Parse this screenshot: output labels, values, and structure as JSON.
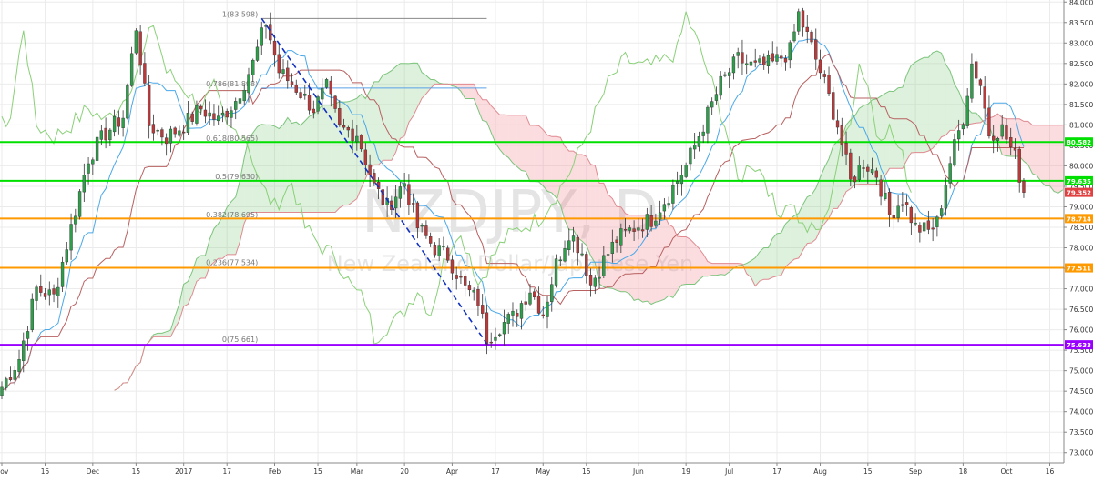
{
  "chart_data": {
    "type": "candlestick",
    "watermark_symbol": "NZDJPY, D",
    "watermark_name": "New Zealand Dollar/Japanese Yen",
    "y_range": [
      72.75,
      84.05
    ],
    "y_ticks": [
      84.0,
      83.5,
      83.0,
      82.5,
      82.0,
      81.5,
      81.0,
      80.5,
      80.0,
      79.5,
      79.0,
      78.5,
      78.0,
      77.5,
      77.0,
      76.5,
      76.0,
      75.5,
      75.0,
      74.5,
      74.0,
      73.5,
      73.0
    ],
    "y_tick_labels": [
      "84.000",
      "83.500",
      "83.000",
      "82.500",
      "82.000",
      "81.500",
      "81.000",
      "80.500",
      "80.000",
      "79.500",
      "79.000",
      "78.500",
      "78.000",
      "77.500",
      "77.000",
      "76.500",
      "76.000",
      "75.500",
      "75.000",
      "74.500",
      "74.000",
      "73.500",
      "73.000"
    ],
    "x_labels": [
      {
        "i": 0,
        "label": "Nov"
      },
      {
        "i": 10,
        "label": "15"
      },
      {
        "i": 21,
        "label": "Dec"
      },
      {
        "i": 31,
        "label": "15"
      },
      {
        "i": 42,
        "label": "2017"
      },
      {
        "i": 52,
        "label": "17"
      },
      {
        "i": 63,
        "label": "Feb"
      },
      {
        "i": 73,
        "label": "15"
      },
      {
        "i": 82,
        "label": "Mar"
      },
      {
        "i": 93,
        "label": "20"
      },
      {
        "i": 104,
        "label": "Apr"
      },
      {
        "i": 114,
        "label": "17"
      },
      {
        "i": 125,
        "label": "May"
      },
      {
        "i": 135,
        "label": "15"
      },
      {
        "i": 147,
        "label": "Jun"
      },
      {
        "i": 158,
        "label": "19"
      },
      {
        "i": 168,
        "label": "Jul"
      },
      {
        "i": 179,
        "label": "17"
      },
      {
        "i": 189,
        "label": "Aug"
      },
      {
        "i": 200,
        "label": "15"
      },
      {
        "i": 211,
        "label": "Sep"
      },
      {
        "i": 222,
        "label": "18"
      },
      {
        "i": 232,
        "label": "Oct"
      },
      {
        "i": 242,
        "label": "16"
      }
    ],
    "horizontal_levels": [
      {
        "price": 80.582,
        "label": "80.582",
        "color": "#00e000"
      },
      {
        "price": 79.635,
        "label": "79.635",
        "color": "#00e000"
      },
      {
        "price": 78.714,
        "label": "78.714",
        "color": "#ff9900"
      },
      {
        "price": 77.511,
        "label": "77.511",
        "color": "#ff9900"
      },
      {
        "price": 75.633,
        "label": "75.633",
        "color": "#9900ff"
      }
    ],
    "last_price": {
      "price": 79.352,
      "label": "79.352",
      "color": "#e04040"
    },
    "fibonacci": {
      "start_index": 60,
      "end_index": 112,
      "high": 83.598,
      "low": 75.661,
      "levels": [
        {
          "price": 83.598,
          "label": "1(83.598)",
          "color": "#888888"
        },
        {
          "price": 81.898,
          "label": "0.786(81.898)",
          "color": "#5aa0e6"
        },
        {
          "price": 80.565,
          "label": "0.618(80.565)",
          "color": "#00c000"
        },
        {
          "price": 79.63,
          "label": "0.5(79.630)",
          "color": "#00c000"
        },
        {
          "price": 78.695,
          "label": "0.382(78.695)",
          "color": "#e6a800"
        },
        {
          "price": 77.534,
          "label": "0.236(77.534)",
          "color": "#e6a800"
        },
        {
          "price": 75.661,
          "label": "0(75.661)",
          "color": "#8800cc"
        }
      ]
    },
    "trendline": {
      "from_index": 60,
      "from_price": 83.6,
      "to_index": 112,
      "to_price": 75.66,
      "color": "#1030c0"
    },
    "anchors": [
      {
        "i": 0,
        "c": 74.6
      },
      {
        "i": 4,
        "c": 75.3
      },
      {
        "i": 8,
        "c": 77.0
      },
      {
        "i": 12,
        "c": 76.8
      },
      {
        "i": 16,
        "c": 78.5
      },
      {
        "i": 20,
        "c": 80.2
      },
      {
        "i": 24,
        "c": 80.8
      },
      {
        "i": 28,
        "c": 81.2
      },
      {
        "i": 31,
        "c": 83.4
      },
      {
        "i": 34,
        "c": 81.0
      },
      {
        "i": 38,
        "c": 80.7
      },
      {
        "i": 42,
        "c": 81.0
      },
      {
        "i": 46,
        "c": 81.4
      },
      {
        "i": 50,
        "c": 81.1
      },
      {
        "i": 54,
        "c": 81.6
      },
      {
        "i": 58,
        "c": 82.5
      },
      {
        "i": 61,
        "c": 83.5
      },
      {
        "i": 64,
        "c": 82.3
      },
      {
        "i": 68,
        "c": 81.9
      },
      {
        "i": 72,
        "c": 81.4
      },
      {
        "i": 75,
        "c": 81.9
      },
      {
        "i": 78,
        "c": 80.9
      },
      {
        "i": 82,
        "c": 80.8
      },
      {
        "i": 86,
        "c": 79.5
      },
      {
        "i": 89,
        "c": 79.0
      },
      {
        "i": 93,
        "c": 79.6
      },
      {
        "i": 96,
        "c": 78.5
      },
      {
        "i": 100,
        "c": 78.0
      },
      {
        "i": 103,
        "c": 77.8
      },
      {
        "i": 107,
        "c": 77.0
      },
      {
        "i": 110,
        "c": 76.7
      },
      {
        "i": 112,
        "c": 75.8
      },
      {
        "i": 115,
        "c": 76.1
      },
      {
        "i": 118,
        "c": 76.3
      },
      {
        "i": 122,
        "c": 77.0
      },
      {
        "i": 125,
        "c": 76.4
      },
      {
        "i": 128,
        "c": 77.6
      },
      {
        "i": 131,
        "c": 78.4
      },
      {
        "i": 134,
        "c": 77.9
      },
      {
        "i": 136,
        "c": 77.1
      },
      {
        "i": 139,
        "c": 77.7
      },
      {
        "i": 142,
        "c": 78.2
      },
      {
        "i": 146,
        "c": 78.5
      },
      {
        "i": 150,
        "c": 78.7
      },
      {
        "i": 154,
        "c": 79.3
      },
      {
        "i": 158,
        "c": 80.0
      },
      {
        "i": 162,
        "c": 81.0
      },
      {
        "i": 166,
        "c": 82.0
      },
      {
        "i": 170,
        "c": 82.6
      },
      {
        "i": 174,
        "c": 82.4
      },
      {
        "i": 178,
        "c": 82.5
      },
      {
        "i": 182,
        "c": 82.8
      },
      {
        "i": 184,
        "c": 83.7
      },
      {
        "i": 187,
        "c": 82.9
      },
      {
        "i": 190,
        "c": 82.0
      },
      {
        "i": 193,
        "c": 81.0
      },
      {
        "i": 196,
        "c": 79.6
      },
      {
        "i": 199,
        "c": 80.1
      },
      {
        "i": 202,
        "c": 79.8
      },
      {
        "i": 205,
        "c": 78.8
      },
      {
        "i": 208,
        "c": 79.2
      },
      {
        "i": 211,
        "c": 78.5
      },
      {
        "i": 214,
        "c": 78.4
      },
      {
        "i": 216,
        "c": 78.6
      },
      {
        "i": 219,
        "c": 80.1
      },
      {
        "i": 222,
        "c": 81.2
      },
      {
        "i": 224,
        "c": 82.5
      },
      {
        "i": 226,
        "c": 82.0
      },
      {
        "i": 228,
        "c": 80.8
      },
      {
        "i": 231,
        "c": 80.9
      },
      {
        "i": 234,
        "c": 80.2
      },
      {
        "i": 236,
        "c": 79.35
      }
    ],
    "n_bars": 237,
    "last_index_for_axis": 244
  },
  "colors": {
    "bull": "#2e9e4a",
    "bear": "#b83a3a",
    "grid": "#ebebeb",
    "tenkan": "#4aa8e8",
    "kijun": "#b86060",
    "chikou": "#8ad078",
    "cloud_bull": "rgba(120,200,120,0.25)",
    "cloud_bear": "rgba(240,120,130,0.25)",
    "span_a": "#7cc47c",
    "span_b": "#e08a90"
  }
}
